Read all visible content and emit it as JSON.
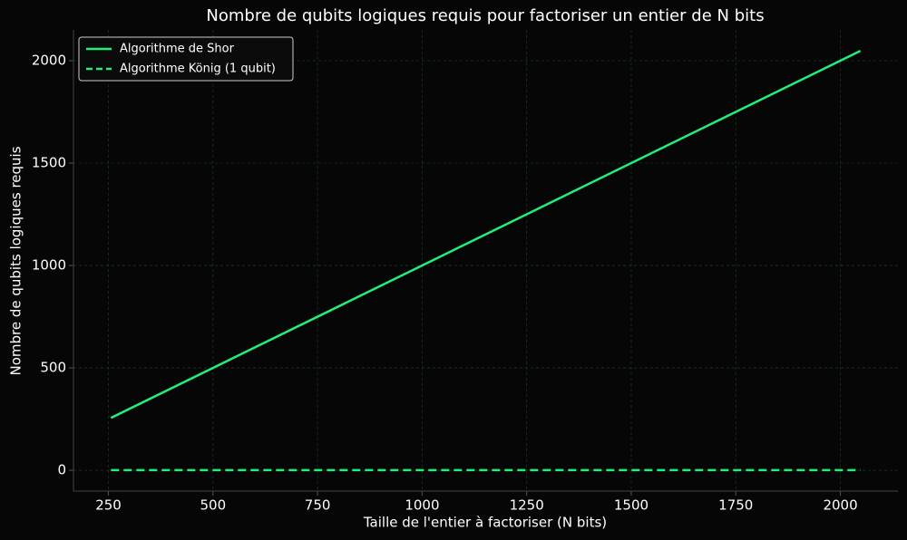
{
  "chart_data": {
    "type": "line",
    "title": "Nombre de qubits logiques requis pour factoriser un entier de N bits",
    "xlabel": "Taille de l'entier à factoriser (N bits)",
    "ylabel": "Nombre de qubits logiques requis",
    "x": [
      256,
      512,
      1024,
      2048
    ],
    "series": [
      {
        "name": "Algorithme de Shor",
        "color": "#22ee7a",
        "dash": false,
        "values": [
          256,
          512,
          1024,
          2048
        ]
      },
      {
        "name": "Algorithme König (1 qubit)",
        "color": "#22ee7a",
        "dash": true,
        "values": [
          1,
          1,
          1,
          1
        ]
      }
    ],
    "xlim": [
      166.4,
      2137.6
    ],
    "xticks": [
      250,
      500,
      750,
      1000,
      1250,
      1500,
      1750,
      2000
    ],
    "ylim": [
      -101.35,
      2150.35
    ],
    "yticks": [
      0,
      500,
      1000,
      1500,
      2000
    ],
    "grid": true,
    "legend": "upper-left"
  }
}
